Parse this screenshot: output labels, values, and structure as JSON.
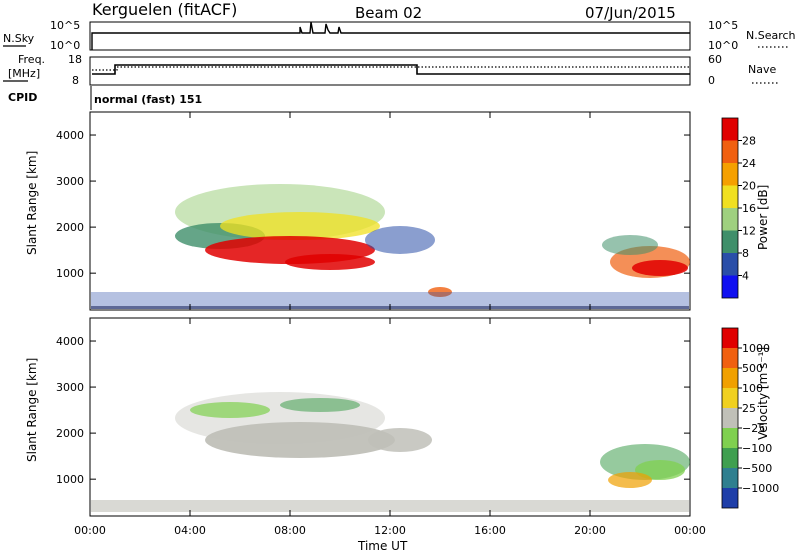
{
  "header": {
    "station": "Kerguelen (fitACF)",
    "beam": "Beam 02",
    "date": "07/Jun/2015"
  },
  "noise_panel": {
    "left_label": "N.Sky",
    "right_label": "N.Search",
    "left_ticks": [
      "10^5",
      "10^0"
    ],
    "right_ticks": [
      "10^5",
      "10^0"
    ]
  },
  "freq_panel": {
    "left_label_1": "Freq.",
    "left_label_2": "[MHz]",
    "right_label": "Nave",
    "left_ticks": [
      "18",
      "8"
    ],
    "right_ticks": [
      "60",
      "0"
    ],
    "cpid_label": "CPID",
    "cpid_text": "normal (fast) 151"
  },
  "chart_data": [
    {
      "type": "heatmap",
      "name": "power",
      "ylabel": "Slant Range [km]",
      "ylim": [
        200,
        4500
      ],
      "y_ticks": [
        "1000",
        "2000",
        "3000",
        "4000"
      ],
      "colorbar": {
        "label": "Power [dB]",
        "ticks": [
          "4",
          "8",
          "12",
          "16",
          "20",
          "24",
          "28"
        ],
        "colors": [
          "#1010f0",
          "#2a4ea8",
          "#3f8f6a",
          "#9fd07f",
          "#f0e020",
          "#f5a000",
          "#f06010",
          "#e00000"
        ]
      }
    },
    {
      "type": "heatmap",
      "name": "velocity",
      "ylabel": "Slant Range [km]",
      "ylim": [
        200,
        4500
      ],
      "y_ticks": [
        "1000",
        "2000",
        "3000",
        "4000"
      ],
      "colorbar": {
        "label": "Velocity [m s⁻¹]",
        "ticks": [
          "1000",
          "500",
          "100",
          "25",
          "−25",
          "−100",
          "−500",
          "−1000"
        ],
        "colors": [
          "#1e3ea8",
          "#2f7f8f",
          "#3f9f4f",
          "#7fd04f",
          "#c0c0b8",
          "#f0d020",
          "#f0a000",
          "#f06010",
          "#e00000"
        ]
      }
    }
  ],
  "xaxis": {
    "label": "Time UT",
    "ticks": [
      "00:00",
      "04:00",
      "08:00",
      "12:00",
      "16:00",
      "20:00",
      "00:00"
    ]
  }
}
